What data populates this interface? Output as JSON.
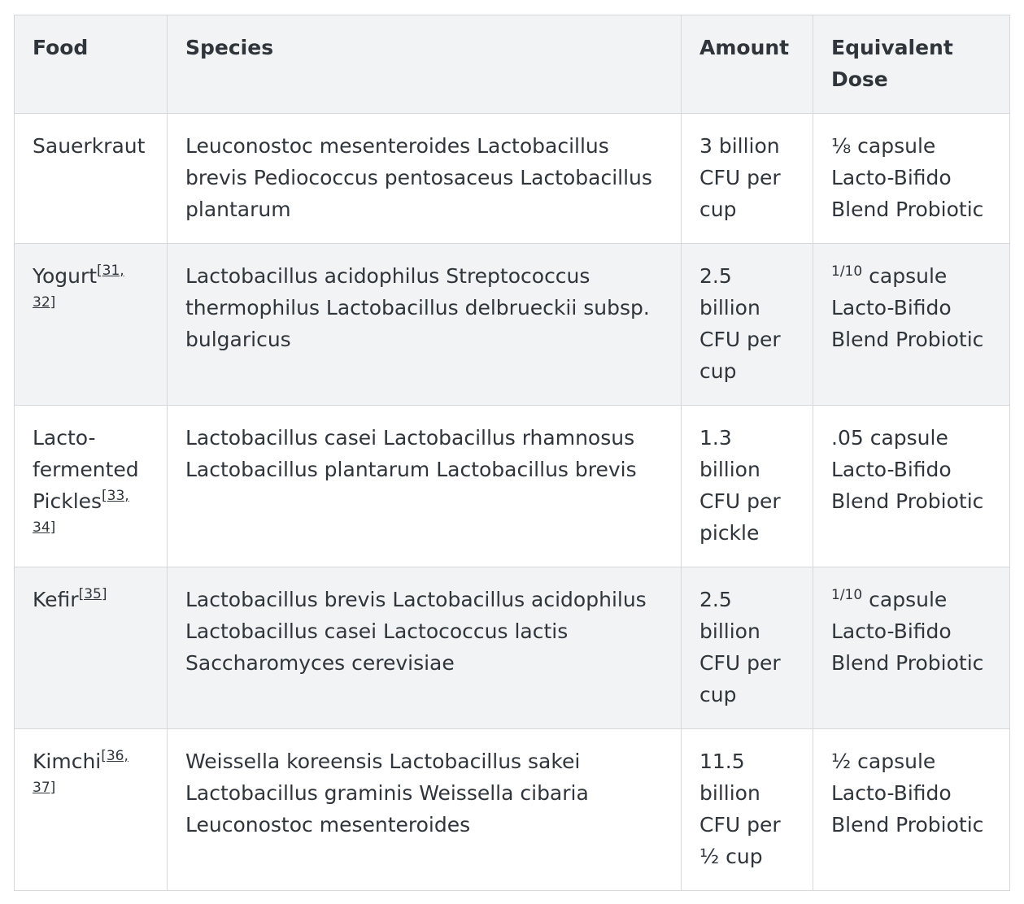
{
  "headers": {
    "food": "Food",
    "species": "Species",
    "amount": "Amount",
    "dose": "Equivalent Dose"
  },
  "rows": [
    {
      "food": "Sauerkraut",
      "ref": "",
      "species": "Leuconostoc mesenteroides Lactobacillus brevis Pediococcus pentosaceus Lactobacillus plantarum",
      "amount": "3 billion CFU per cup",
      "dose_fraction": "",
      "dose": "⅛ capsule Lacto-Bifido Blend Probiotic"
    },
    {
      "food": "Yogurt",
      "ref": "[31, 32]",
      "species": "Lactobacillus acidophilus Streptococcus thermophilus Lactobacillus delbrueckii subsp. bulgaricus",
      "amount": "2.5 billion CFU per cup",
      "dose_fraction": "1/10",
      "dose": " capsule Lacto-Bifido Blend Probiotic"
    },
    {
      "food": "Lacto-fermented Pickles",
      "ref": "[33, 34]",
      "species": "Lactobacillus casei Lactobacillus rhamnosus Lactobacillus plantarum Lactobacillus brevis",
      "amount": "1.3 billion CFU per pickle",
      "dose_fraction": "",
      "dose": ".05 capsule Lacto-Bifido Blend Probiotic"
    },
    {
      "food": "Kefir",
      "ref": "[35]",
      "species": "Lactobacillus brevis Lactobacillus acidophilus Lactobacillus casei Lactococcus lactis Saccharomyces cerevisiae",
      "amount": "2.5 billion CFU per cup",
      "dose_fraction": "1/10",
      "dose": " capsule Lacto-Bifido Blend Probiotic"
    },
    {
      "food": "Kimchi",
      "ref": "[36, 37]",
      "species": "Weissella koreensis Lactobacillus sakei Lactobacillus graminis Weissella cibaria Leuconostoc mesenteroides",
      "amount": "11.5 billion CFU per ½ cup",
      "dose_fraction": "",
      "dose": "½ capsule Lacto-Bifido Blend Probiotic"
    }
  ]
}
